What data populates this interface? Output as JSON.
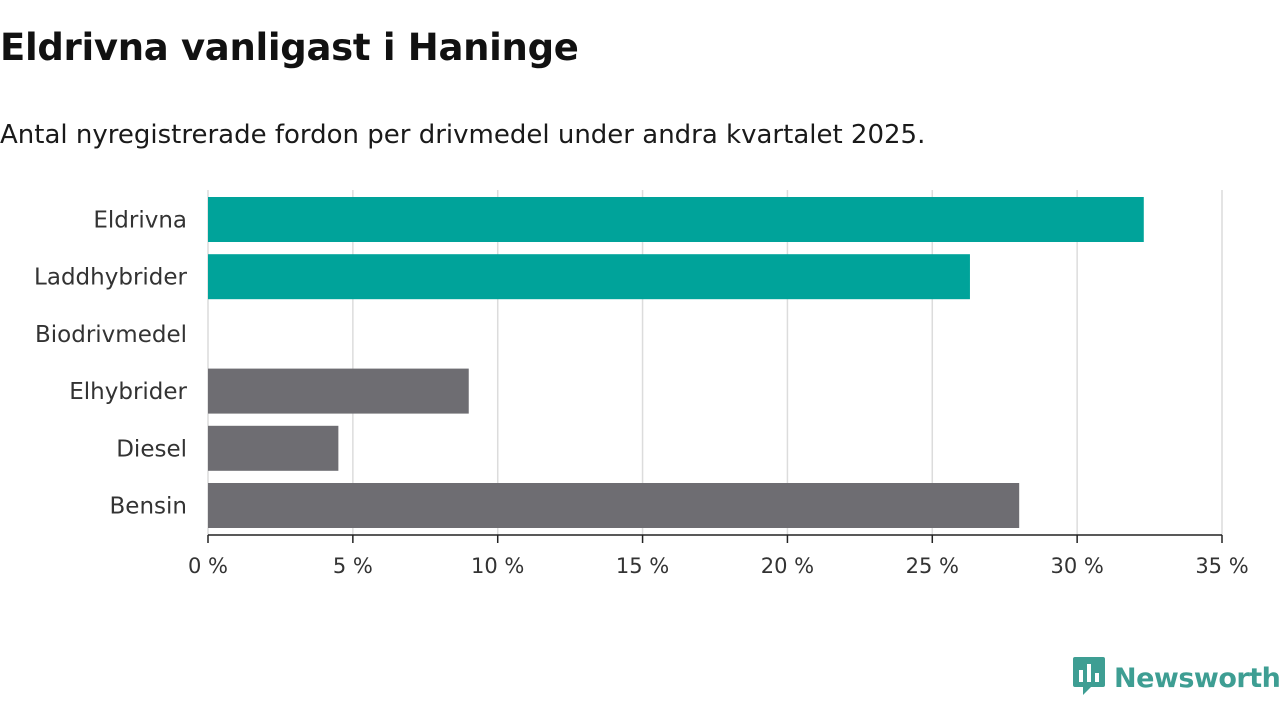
{
  "chart_data": {
    "type": "bar",
    "orientation": "horizontal",
    "title": "Eldrivna vanligast i Haninge",
    "subtitle": "Antal nyregistrerade fordon per drivmedel under andra kvartalet 2025.",
    "categories": [
      "Eldrivna",
      "Laddhybrider",
      "Biodrivmedel",
      "Elhybrider",
      "Diesel",
      "Bensin"
    ],
    "values": [
      32.3,
      26.3,
      0,
      9.0,
      4.5,
      28.0
    ],
    "unit": "%",
    "xlim": [
      0,
      35
    ],
    "xticks": [
      0,
      5,
      10,
      15,
      20,
      25,
      30,
      35
    ],
    "xtick_labels": [
      "0 %",
      "5 %",
      "10 %",
      "15 %",
      "20 %",
      "25 %",
      "30 %",
      "35 %"
    ],
    "grid": true,
    "bar_colors": [
      "#00a39a",
      "#00a39a",
      "#00a39a",
      "#6e6d72",
      "#6e6d72",
      "#6e6d72"
    ]
  },
  "brand": {
    "name": "Newsworthy",
    "color": "#3e9e93",
    "icon": "bar-chart-speech-bubble-icon"
  }
}
